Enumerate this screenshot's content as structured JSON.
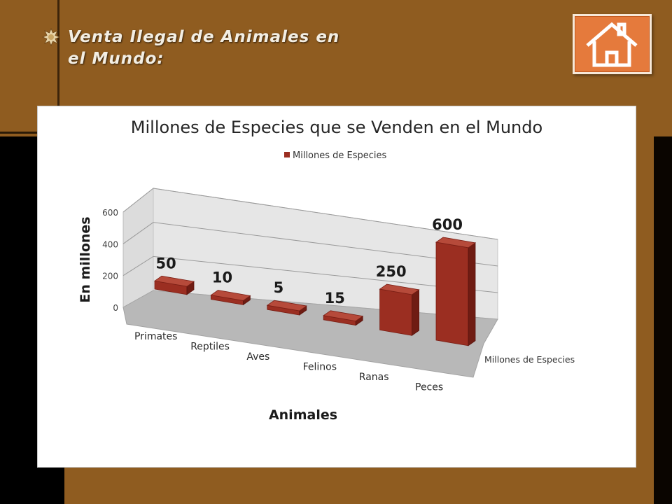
{
  "slide": {
    "title_line1": "Venta Ilegal de Animales en",
    "title_line2": "el Mundo:"
  },
  "colors": {
    "background_brown": "#8f5c20",
    "bar_fill": "#9b2e21",
    "home_button": "#e57a3c"
  },
  "icons": {
    "bullet": "gear-bullet-icon",
    "home": "home-icon"
  },
  "chart_data": {
    "type": "bar",
    "style": "3d-column",
    "title": "Millones de Especies que se Venden en el Mundo",
    "xlabel": "Animales",
    "ylabel": "En millones",
    "categories": [
      "Primates",
      "Reptiles",
      "Aves",
      "Felinos",
      "Ranas",
      "Peces"
    ],
    "series": [
      {
        "name": "Millones de Especies",
        "values": [
          50,
          10,
          5,
          15,
          250,
          600
        ]
      }
    ],
    "data_labels": [
      "50",
      "10",
      "5",
      "15",
      "250",
      "600"
    ],
    "ylim": [
      0,
      600
    ],
    "yticks": [
      0,
      200,
      400,
      600
    ],
    "ytick_labels": [
      "0",
      "200",
      "400",
      "600"
    ],
    "depth_axis_label": "Millones de Especies",
    "legend": {
      "position": "top",
      "label": "Millones de Especies"
    },
    "grid": true
  }
}
